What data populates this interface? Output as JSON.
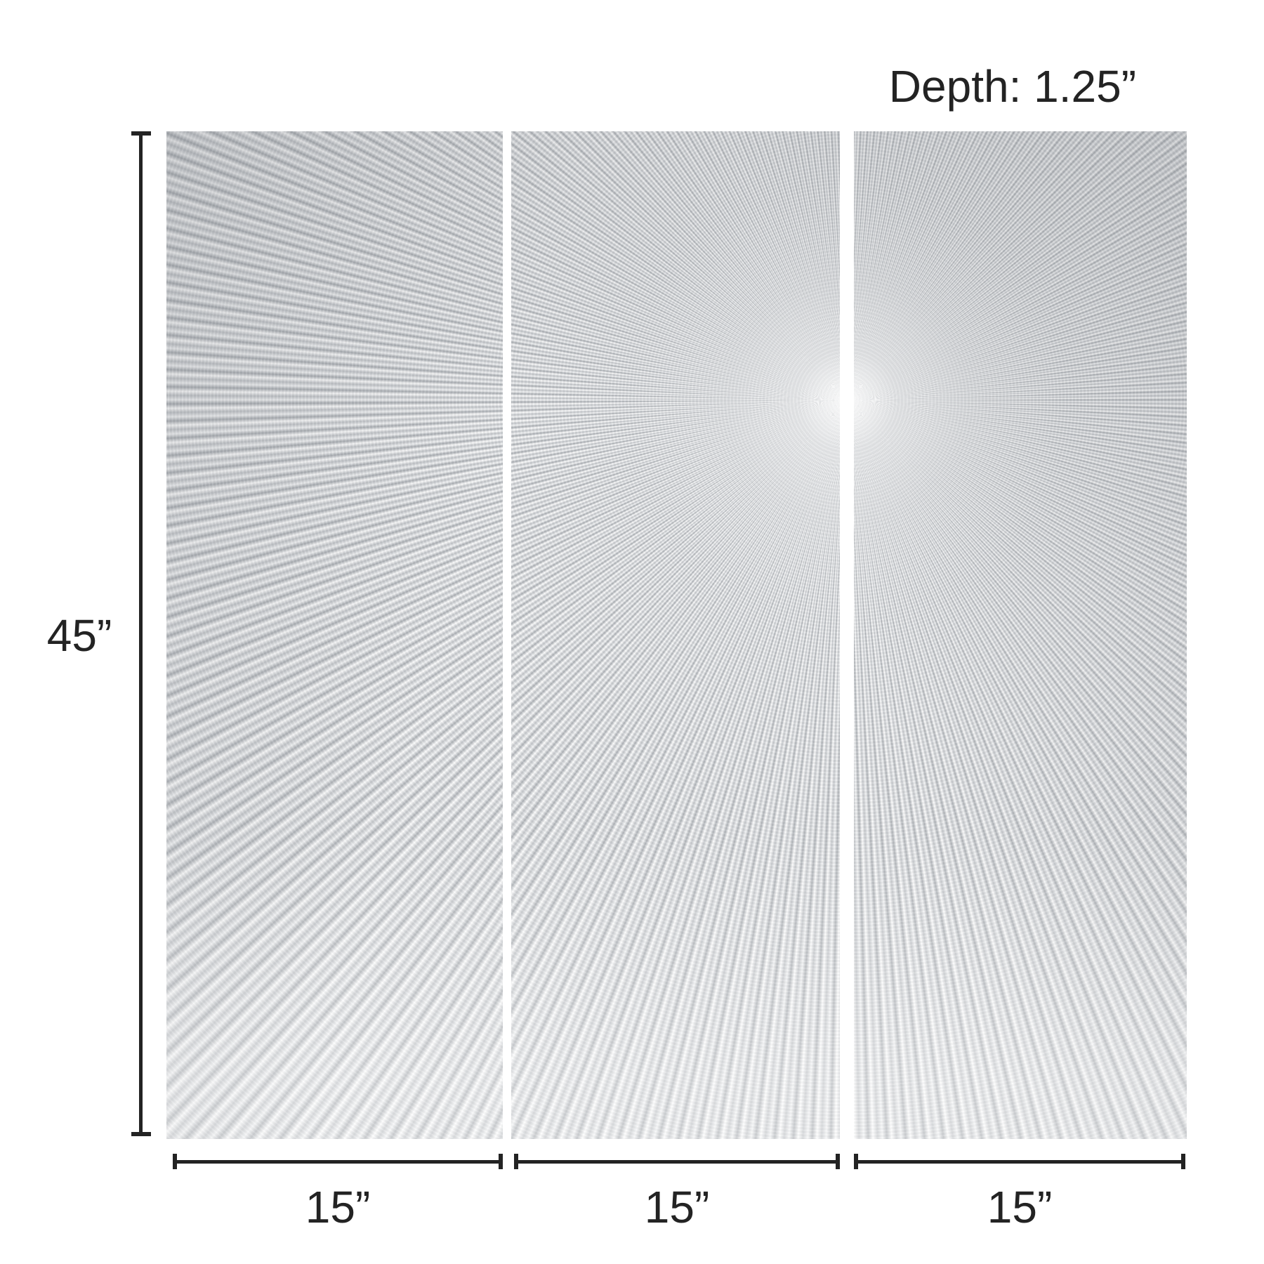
{
  "artwork": {
    "description": "Three-panel silver sunburst textured wall art",
    "panel_count": 3,
    "panels": [
      {
        "name": "left-panel"
      },
      {
        "name": "middle-panel"
      },
      {
        "name": "right-panel"
      }
    ],
    "colors": {
      "background": "#ffffff",
      "silver_base": "#c6c9cc",
      "ray_light": "#f7f8f9",
      "ray_dark": "#a8acb1",
      "dimension_line": "#232323"
    }
  },
  "labels": {
    "depth": "Depth: 1.25”",
    "height": "45”",
    "width_1": "15”",
    "width_2": "15”",
    "width_3": "15”"
  }
}
